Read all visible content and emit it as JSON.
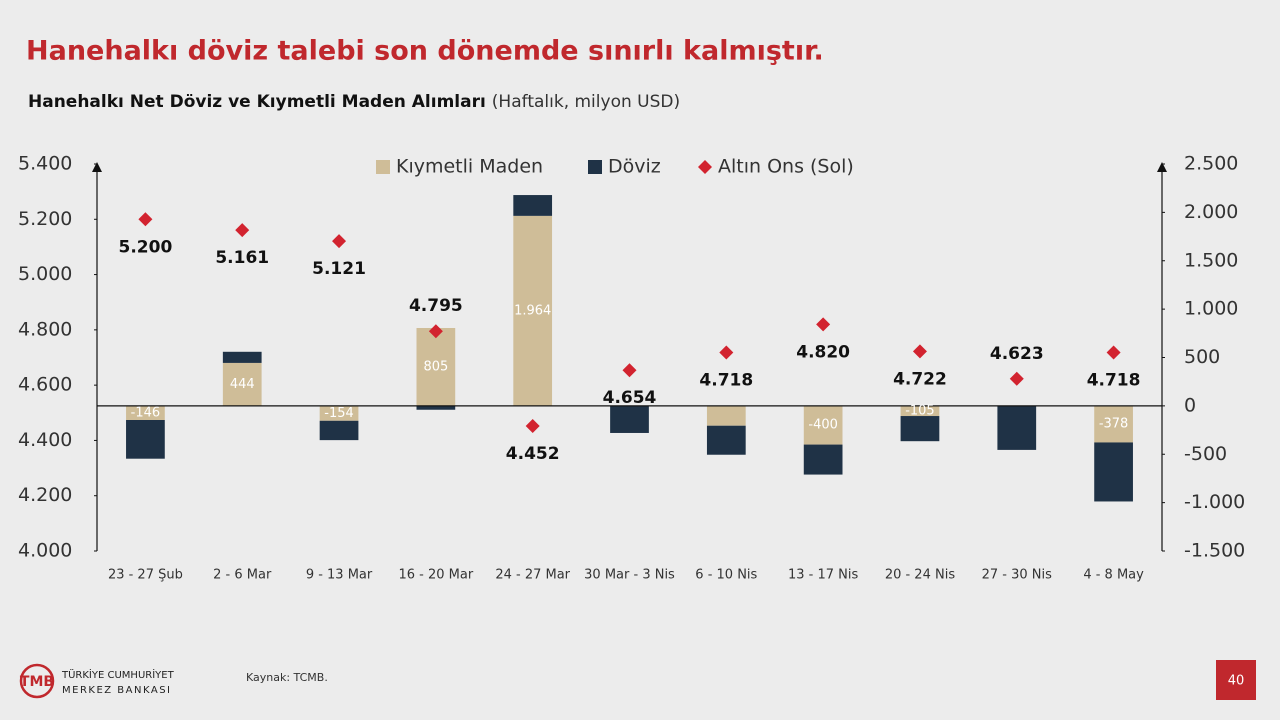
{
  "chart_data": {
    "type": "bar",
    "title": "Hanehalkı döviz talebi son dönemde sınırlı kalmıştır.",
    "subtitle": "Hanehalkı Net Döviz ve Kıymetli Maden Alımları",
    "subtitle_note": "(Haftalık, milyon USD)",
    "categories": [
      "23 - 27 Şub",
      "2 - 6 Mar",
      "9 - 13 Mar",
      "16 - 20 Mar",
      "24 - 27 Mar",
      "30 Mar - 3 Nis",
      "6 - 10 Nis",
      "13 - 17 Nis",
      "20 - 24 Nis",
      "27 - 30 Nis",
      "4 - 8 May"
    ],
    "series": [
      {
        "name": "Kıymetli Maden",
        "color": "#cfbd98",
        "axis": "y2",
        "values": [
          -146,
          444,
          -154,
          805,
          1964,
          0,
          -205,
          -400,
          -105,
          0,
          -378
        ],
        "value_labels": [
          "-146",
          "444",
          "-154",
          "805",
          "1.964",
          null,
          null,
          "-400",
          "-105",
          null,
          "-378"
        ]
      },
      {
        "name": "Döviz",
        "color": "#1f3246",
        "axis": "y2",
        "values": [
          -400,
          115,
          -200,
          -40,
          215,
          -280,
          -300,
          -310,
          -260,
          -455,
          -610
        ]
      },
      {
        "name": "Altın Ons (Sol)",
        "color": "#d2232f",
        "type": "scatter",
        "values": [
          5200,
          5161,
          5121,
          4795,
          4452,
          4654,
          4718,
          4820,
          4722,
          4623,
          4718
        ],
        "value_labels": [
          "5.200",
          "5.161",
          "5.121",
          "4.795",
          "4.452",
          "4.654",
          "4.718",
          "4.820",
          "4.722",
          "4.623",
          "4.718"
        ]
      }
    ],
    "ylim": [
      4000,
      5400
    ],
    "yticks": [
      {
        "value": 4000,
        "label": "4.000"
      },
      {
        "value": 4200,
        "label": "4.200"
      },
      {
        "value": 4400,
        "label": "4.400"
      },
      {
        "value": 4600,
        "label": "4.600"
      },
      {
        "value": 4800,
        "label": "4.800"
      },
      {
        "value": 5000,
        "label": "5.000"
      },
      {
        "value": 5200,
        "label": "5.200"
      },
      {
        "value": 5400,
        "label": "5.400"
      }
    ],
    "y2lim": [
      -1500,
      2500
    ],
    "y2ticks": [
      {
        "value": -1500,
        "label": "-1.500"
      },
      {
        "value": -1000,
        "label": "-1.000"
      },
      -500,
      0,
      500,
      {
        "value": 1000,
        "label": "1.000"
      },
      {
        "value": 1500,
        "label": "1.500"
      },
      {
        "value": 2000,
        "label": "2.000"
      },
      {
        "value": 2500,
        "label": "2.500"
      }
    ],
    "legend": "top",
    "source": "Kaynak: TCMB."
  },
  "footer": {
    "logo_line1": "TÜRKİYE CUMHURİYET",
    "logo_line2": "MERKEZ BANKASI",
    "page_number": "40"
  }
}
